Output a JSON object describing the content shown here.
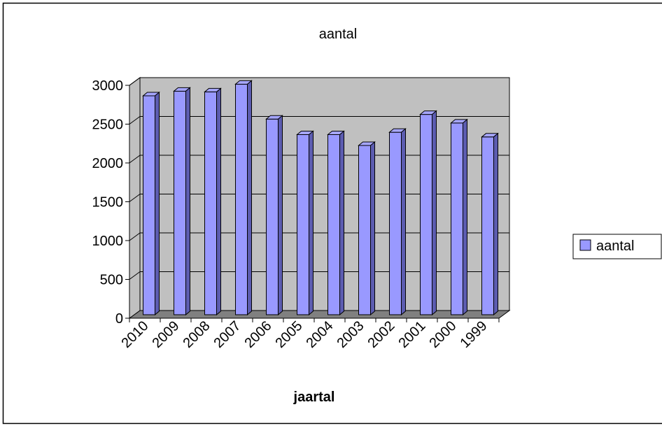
{
  "chart_data": {
    "type": "bar",
    "title": "aantal",
    "xlabel": "jaartal",
    "ylabel": "",
    "categories": [
      "2010",
      "2009",
      "2008",
      "2007",
      "2006",
      "2005",
      "2004",
      "2003",
      "2002",
      "2001",
      "2000",
      "1999"
    ],
    "series": [
      {
        "name": "aantal",
        "values": [
          2820,
          2880,
          2870,
          2970,
          2520,
          2320,
          2320,
          2180,
          2350,
          2580,
          2470,
          2290
        ]
      }
    ],
    "ylim": [
      0,
      3000
    ],
    "yticks": [
      0,
      500,
      1000,
      1500,
      2000,
      2500,
      3000
    ],
    "grid": true,
    "legend": "right",
    "colors": {
      "bar_front": "#9999ff",
      "bar_top": "#a6a6ff",
      "bar_side": "#5c5cb0",
      "wall": "#c0c0c0",
      "floor": "#808080"
    }
  }
}
